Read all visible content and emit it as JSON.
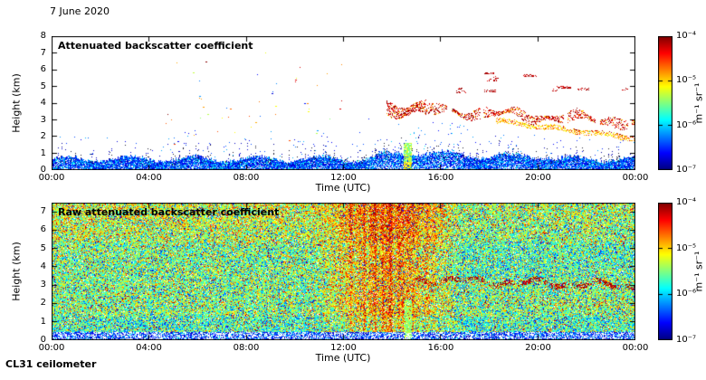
{
  "page": {
    "date_label": "7 June 2020",
    "footer_label": "CL31 ceilometer",
    "background_color": "#ffffff"
  },
  "chart_data": [
    {
      "type": "heatmap",
      "title": "Attenuated backscatter coefficient",
      "xlabel": "Time (UTC)",
      "ylabel": "Height (km)",
      "x_tick_labels": [
        "00:00",
        "04:00",
        "08:00",
        "12:00",
        "16:00",
        "20:00",
        "00:00"
      ],
      "x_range_hours": [
        0,
        24
      ],
      "ylim": [
        0,
        8
      ],
      "y_tick_values": [
        0,
        1,
        2,
        3,
        4,
        5,
        6,
        7,
        8
      ],
      "grid": false,
      "colorbar": {
        "colormap": "jet",
        "scale": "log",
        "tick_labels": [
          "10⁻⁴",
          "10⁻⁵",
          "10⁻⁶",
          "10⁻⁷"
        ],
        "value_top": "1e-4",
        "value_bottom": "1e-7",
        "unit_label": "m⁻¹ sr⁻¹",
        "position": "right"
      },
      "features": [
        {
          "name": "boundary-layer-noise",
          "time_hours": [
            0,
            24
          ],
          "height_km": [
            0,
            1.0
          ],
          "value": "dense blue speckle ~1e-6.5 with dark spikes to ~1.8 km"
        },
        {
          "name": "precipitation-streak",
          "time_hours": [
            14.5,
            14.8
          ],
          "height_km": [
            0,
            1.6
          ],
          "value": "green column ~1e-5.5"
        },
        {
          "name": "elevated-aerosol-layer",
          "time_hours": [
            13.8,
            24
          ],
          "height_km_start": 3.7,
          "height_km_end": 2.85,
          "value": "ragged dark-red layer ~1e-4 descending"
        },
        {
          "name": "lower-aerosol-band",
          "time_hours": [
            18.3,
            24
          ],
          "height_km_start": 2.9,
          "height_km_end": 1.85,
          "value": "orange-yellow band ~1e-5 descending"
        },
        {
          "name": "high-cloud-fragments",
          "time_hours": [
            16.5,
            23.8
          ],
          "height_km": [
            4.5,
            6.2
          ],
          "value": "scattered red cloud specks ~1e-4"
        },
        {
          "name": "scattered-morning-specks",
          "time_hours": [
            4.5,
            12
          ],
          "height_km": [
            1.5,
            7
          ],
          "value": "sparse mixed specks"
        }
      ]
    },
    {
      "type": "heatmap",
      "title": "Raw attenuated backscatter coefficient",
      "xlabel": "Time (UTC)",
      "ylabel": "Height (km)",
      "x_tick_labels": [
        "00:00",
        "04:00",
        "08:00",
        "12:00",
        "16:00",
        "20:00",
        "00:00"
      ],
      "x_range_hours": [
        0,
        24
      ],
      "ylim": [
        0,
        7.5
      ],
      "y_tick_values": [
        0,
        1,
        2,
        3,
        4,
        5,
        6,
        7
      ],
      "grid": false,
      "colorbar": {
        "colormap": "jet",
        "scale": "log",
        "tick_labels": [
          "10⁻⁴",
          "10⁻⁵",
          "10⁻⁶",
          "10⁻⁷"
        ],
        "value_top": "1e-4",
        "value_bottom": "1e-7",
        "unit_label": "m⁻¹ sr⁻¹",
        "position": "right"
      },
      "features": [
        {
          "name": "raw-noise-field",
          "time_hours": [
            0,
            24
          ],
          "height_km": [
            0.5,
            7.5
          ],
          "value": "dense green/yellow speckle noise with red and blue dots"
        },
        {
          "name": "near-surface-band",
          "time_hours": [
            0,
            24
          ],
          "height_km": [
            0,
            0.45
          ],
          "value": "white band with blue speckle"
        },
        {
          "name": "enhanced-noise-column",
          "time_hours": [
            11.5,
            16
          ],
          "height_km": [
            0.5,
            7.5
          ],
          "value": "orange/red vertical streaking"
        },
        {
          "name": "precipitation-streak",
          "time_hours": [
            14.5,
            14.8
          ],
          "height_km": [
            0,
            2.2
          ],
          "value": "bright green column"
        },
        {
          "name": "elevated-aerosol-layer",
          "time_hours": [
            15,
            24
          ],
          "height_km_start": 3.3,
          "height_km_end": 2.95,
          "value": "dark red track"
        },
        {
          "name": "lower-scatter",
          "time_hours": [
            20,
            24
          ],
          "height_km": [
            1.6,
            2.3
          ],
          "value": "sparse red dots"
        }
      ]
    }
  ]
}
